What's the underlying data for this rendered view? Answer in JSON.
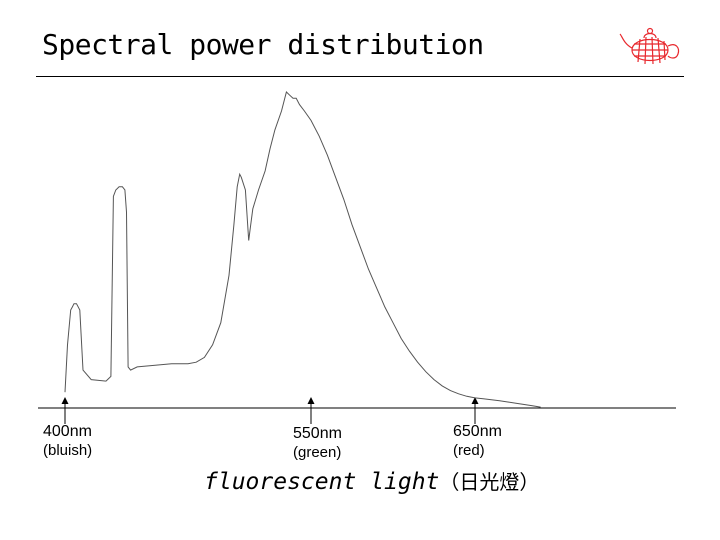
{
  "slide": {
    "title": "Spectral power distribution",
    "caption_main": "fluorescent light",
    "caption_paren": "（日光燈）",
    "logo_icon": "teapot-icon",
    "logo_color": "#e8282d"
  },
  "chart_data": {
    "type": "line",
    "title": "",
    "xlabel": "",
    "ylabel": "",
    "x_unit": "nm",
    "xlim": [
      400,
      750
    ],
    "ylim": [
      0,
      100
    ],
    "grid": false,
    "line_color": "#555555",
    "ticks": [
      {
        "value": 400,
        "label": "400nm",
        "sub": "(bluish)"
      },
      {
        "value": 550,
        "label": "550nm",
        "sub": "(green)"
      },
      {
        "value": 650,
        "label": "650nm",
        "sub": "(red)"
      }
    ],
    "series": [
      {
        "x": [
          400,
          401.5,
          403.5,
          404.5,
          405.5,
          407,
          409,
          411,
          416,
          425,
          428,
          429.5,
          431,
          433,
          435,
          436.5,
          437.5,
          438.5,
          440,
          444,
          455,
          465,
          475,
          480,
          485,
          490,
          495,
          500,
          503,
          505,
          506.5,
          507.5,
          510,
          512,
          513,
          514.5,
          518,
          522,
          525,
          528,
          532,
          535,
          537,
          539,
          541,
          543,
          546,
          550,
          555,
          560,
          565,
          570,
          575,
          580,
          585,
          590,
          595,
          600,
          605,
          610,
          615,
          620,
          625,
          630,
          635,
          640,
          645,
          650,
          655,
          660,
          665,
          670,
          675,
          680,
          685,
          690
        ],
        "y": [
          5,
          20,
          31,
          32,
          33,
          33,
          31,
          12,
          9,
          8.5,
          10,
          67,
          69,
          70,
          70,
          69,
          62,
          13,
          12,
          13,
          13.5,
          14,
          14,
          14.5,
          16,
          20,
          27,
          42,
          58,
          70,
          74,
          73,
          69,
          53,
          57,
          63,
          69,
          75,
          82,
          88,
          94,
          100,
          99,
          98,
          98,
          96,
          94,
          91,
          86,
          80,
          73,
          66,
          58,
          51,
          44,
          38,
          32,
          27,
          22,
          18,
          14.5,
          11.5,
          9,
          7,
          5.5,
          4.5,
          3.7,
          3.2,
          2.9,
          2.6,
          2.3,
          1.9,
          1.5,
          1.1,
          0.7,
          0.3
        ]
      }
    ]
  }
}
